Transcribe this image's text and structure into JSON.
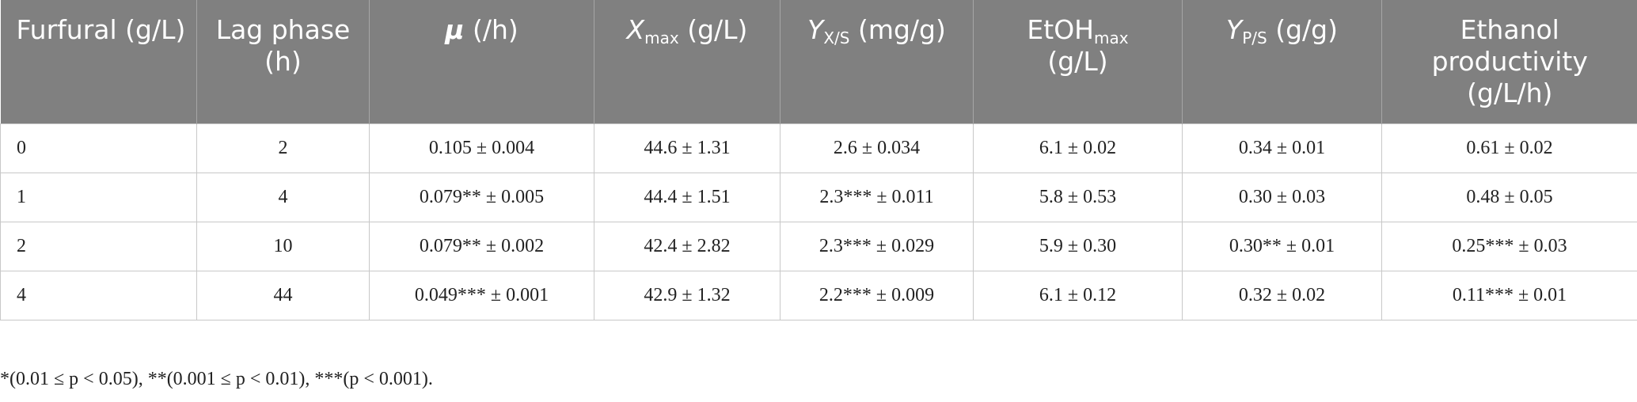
{
  "table": {
    "header": [
      [
        "Furfural (g/L)"
      ],
      [
        "Lag phase (h)"
      ],
      [
        "μ",
        " (/h)"
      ],
      [
        "X",
        "max",
        " (g/L)"
      ],
      [
        "Y",
        "X/S",
        " (mg/g)"
      ],
      [
        "EtOH",
        "max",
        "(g/L)"
      ],
      [
        "Y",
        "P/S",
        " (g/g)"
      ],
      [
        "Ethanol productivity (g/L/h)"
      ]
    ],
    "rows": [
      [
        "0",
        "2",
        "0.105 ± 0.004",
        "44.6 ± 1.31",
        "2.6 ± 0.034",
        "6.1 ± 0.02",
        "0.34 ± 0.01",
        "0.61 ± 0.02"
      ],
      [
        "1",
        "4",
        "0.079** ± 0.005",
        "44.4 ± 1.51",
        "2.3*** ± 0.011",
        "5.8 ± 0.53",
        "0.30 ± 0.03",
        "0.48 ± 0.05"
      ],
      [
        "2",
        "10",
        "0.079** ± 0.002",
        "42.4 ± 2.82",
        "2.3*** ± 0.029",
        "5.9 ± 0.30",
        "0.30** ± 0.01",
        "0.25*** ± 0.03"
      ],
      [
        "4",
        "44",
        "0.049*** ± 0.001",
        "42.9 ± 1.32",
        "2.2*** ± 0.009",
        "6.1 ± 0.12",
        "0.32 ± 0.02",
        "0.11*** ± 0.01"
      ]
    ]
  },
  "footnote": "*(0.01 ≤ p < 0.05), **(0.001 ≤ p < 0.01), ***(p < 0.001)."
}
